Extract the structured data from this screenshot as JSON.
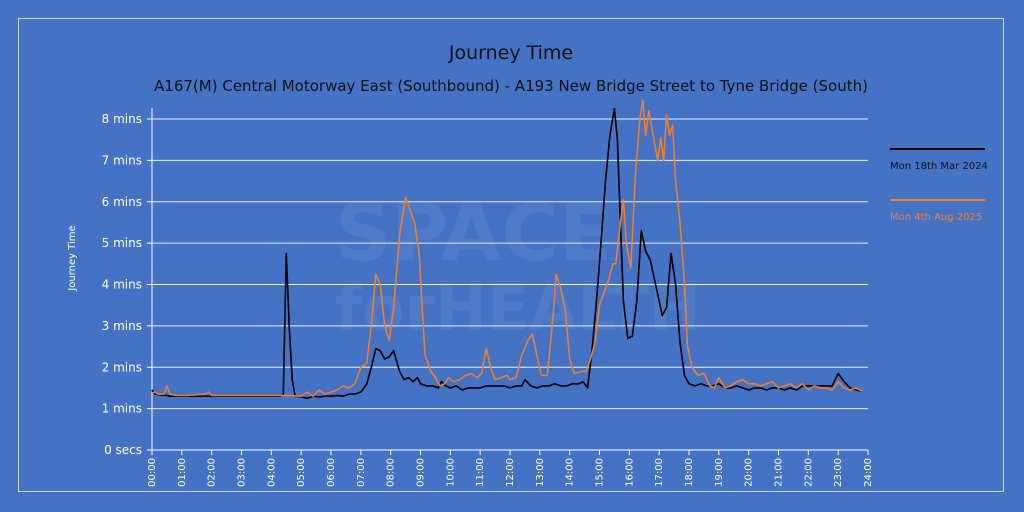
{
  "chart_data": {
    "type": "line",
    "title": "Journey Time",
    "subtitle": "A167(M) Central Motorway East (Southbound) - A193 New Bridge Street to Tyne Bridge (South)",
    "ylabel": "Journey Time",
    "xlabel": "",
    "ylim": [
      0,
      8.5
    ],
    "xlim": [
      0,
      24
    ],
    "grid": true,
    "legend_position": "right",
    "y_ticks": [
      {
        "value": 0,
        "label": "0 secs"
      },
      {
        "value": 1,
        "label": "1 mins"
      },
      {
        "value": 2,
        "label": "2 mins"
      },
      {
        "value": 3,
        "label": "3 mins"
      },
      {
        "value": 4,
        "label": "4 mins"
      },
      {
        "value": 5,
        "label": "5 mins"
      },
      {
        "value": 6,
        "label": "6 mins"
      },
      {
        "value": 7,
        "label": "7 mins"
      },
      {
        "value": 8,
        "label": "8 mins"
      }
    ],
    "x_ticks": [
      {
        "value": 0,
        "label": "00:00"
      },
      {
        "value": 1,
        "label": "01:00"
      },
      {
        "value": 2,
        "label": "02:00"
      },
      {
        "value": 3,
        "label": "03:00"
      },
      {
        "value": 4,
        "label": "04:00"
      },
      {
        "value": 5,
        "label": "05:00"
      },
      {
        "value": 6,
        "label": "06:00"
      },
      {
        "value": 7,
        "label": "07:00"
      },
      {
        "value": 8,
        "label": "08:00"
      },
      {
        "value": 9,
        "label": "09:00"
      },
      {
        "value": 10,
        "label": "10:00"
      },
      {
        "value": 11,
        "label": "11:00"
      },
      {
        "value": 12,
        "label": "12:00"
      },
      {
        "value": 13,
        "label": "13:00"
      },
      {
        "value": 14,
        "label": "14:00"
      },
      {
        "value": 15,
        "label": "15:00"
      },
      {
        "value": 16,
        "label": "16:00"
      },
      {
        "value": 17,
        "label": "17:00"
      },
      {
        "value": 18,
        "label": "18:00"
      },
      {
        "value": 19,
        "label": "19:00"
      },
      {
        "value": 20,
        "label": "20:00"
      },
      {
        "value": 21,
        "label": "21:00"
      },
      {
        "value": 22,
        "label": "22:00"
      },
      {
        "value": 23,
        "label": "23:00"
      },
      {
        "value": 24,
        "label": "24:00"
      }
    ],
    "series": [
      {
        "name": "Mon 18th Mar 2024",
        "color": "#000000",
        "points": [
          [
            0,
            1.45
          ],
          [
            0.1,
            1.35
          ],
          [
            0.3,
            1.33
          ],
          [
            0.5,
            1.32
          ],
          [
            0.6,
            1.3
          ],
          [
            0.8,
            1.3
          ],
          [
            1.5,
            1.3
          ],
          [
            2.5,
            1.3
          ],
          [
            3.5,
            1.3
          ],
          [
            4.3,
            1.3
          ],
          [
            4.4,
            1.35
          ],
          [
            4.5,
            4.75
          ],
          [
            4.6,
            3.0
          ],
          [
            4.7,
            1.7
          ],
          [
            4.8,
            1.3
          ],
          [
            5.0,
            1.28
          ],
          [
            5.2,
            1.25
          ],
          [
            5.4,
            1.3
          ],
          [
            5.6,
            1.28
          ],
          [
            5.8,
            1.3
          ],
          [
            6.0,
            1.3
          ],
          [
            6.2,
            1.32
          ],
          [
            6.4,
            1.3
          ],
          [
            6.6,
            1.35
          ],
          [
            6.8,
            1.35
          ],
          [
            7.0,
            1.4
          ],
          [
            7.2,
            1.6
          ],
          [
            7.35,
            2.0
          ],
          [
            7.5,
            2.45
          ],
          [
            7.65,
            2.4
          ],
          [
            7.8,
            2.2
          ],
          [
            7.95,
            2.25
          ],
          [
            8.1,
            2.4
          ],
          [
            8.3,
            1.9
          ],
          [
            8.45,
            1.7
          ],
          [
            8.6,
            1.75
          ],
          [
            8.75,
            1.65
          ],
          [
            8.9,
            1.75
          ],
          [
            9.0,
            1.6
          ],
          [
            9.2,
            1.55
          ],
          [
            9.4,
            1.55
          ],
          [
            9.6,
            1.5
          ],
          [
            9.7,
            1.65
          ],
          [
            9.85,
            1.55
          ],
          [
            10.0,
            1.5
          ],
          [
            10.2,
            1.55
          ],
          [
            10.4,
            1.45
          ],
          [
            10.6,
            1.5
          ],
          [
            10.8,
            1.5
          ],
          [
            11.0,
            1.5
          ],
          [
            11.2,
            1.55
          ],
          [
            11.4,
            1.55
          ],
          [
            11.6,
            1.55
          ],
          [
            11.8,
            1.55
          ],
          [
            12.0,
            1.5
          ],
          [
            12.2,
            1.55
          ],
          [
            12.4,
            1.55
          ],
          [
            12.5,
            1.7
          ],
          [
            12.7,
            1.55
          ],
          [
            12.9,
            1.5
          ],
          [
            13.1,
            1.55
          ],
          [
            13.3,
            1.55
          ],
          [
            13.5,
            1.6
          ],
          [
            13.7,
            1.55
          ],
          [
            13.9,
            1.55
          ],
          [
            14.1,
            1.6
          ],
          [
            14.3,
            1.6
          ],
          [
            14.45,
            1.65
          ],
          [
            14.6,
            1.5
          ],
          [
            14.75,
            2.4
          ],
          [
            14.9,
            3.6
          ],
          [
            15.05,
            5.0
          ],
          [
            15.2,
            6.5
          ],
          [
            15.35,
            7.6
          ],
          [
            15.5,
            8.25
          ],
          [
            15.6,
            7.5
          ],
          [
            15.7,
            5.5
          ],
          [
            15.8,
            3.6
          ],
          [
            15.95,
            2.7
          ],
          [
            16.1,
            2.75
          ],
          [
            16.25,
            3.6
          ],
          [
            16.4,
            5.3
          ],
          [
            16.55,
            4.8
          ],
          [
            16.7,
            4.6
          ],
          [
            16.85,
            4.1
          ],
          [
            17.0,
            3.6
          ],
          [
            17.1,
            3.25
          ],
          [
            17.25,
            3.45
          ],
          [
            17.4,
            4.75
          ],
          [
            17.55,
            4.0
          ],
          [
            17.7,
            2.6
          ],
          [
            17.85,
            1.8
          ],
          [
            18.0,
            1.6
          ],
          [
            18.2,
            1.55
          ],
          [
            18.4,
            1.6
          ],
          [
            18.6,
            1.55
          ],
          [
            18.8,
            1.55
          ],
          [
            19.0,
            1.6
          ],
          [
            19.2,
            1.5
          ],
          [
            19.4,
            1.5
          ],
          [
            19.6,
            1.55
          ],
          [
            19.8,
            1.5
          ],
          [
            20.0,
            1.45
          ],
          [
            20.2,
            1.5
          ],
          [
            20.4,
            1.5
          ],
          [
            20.6,
            1.45
          ],
          [
            20.8,
            1.5
          ],
          [
            21.0,
            1.5
          ],
          [
            21.2,
            1.45
          ],
          [
            21.4,
            1.5
          ],
          [
            21.6,
            1.45
          ],
          [
            21.8,
            1.55
          ],
          [
            22.0,
            1.55
          ],
          [
            22.2,
            1.55
          ],
          [
            22.4,
            1.55
          ],
          [
            22.6,
            1.55
          ],
          [
            22.8,
            1.55
          ],
          [
            23.0,
            1.85
          ],
          [
            23.2,
            1.65
          ],
          [
            23.4,
            1.5
          ],
          [
            23.6,
            1.45
          ],
          [
            23.8,
            1.42
          ]
        ]
      },
      {
        "name": "Mon 4th Aug 2025",
        "color": "#ed7d31",
        "points": [
          [
            0,
            1.38
          ],
          [
            0.1,
            1.4
          ],
          [
            0.2,
            1.35
          ],
          [
            0.4,
            1.35
          ],
          [
            0.5,
            1.55
          ],
          [
            0.6,
            1.35
          ],
          [
            0.8,
            1.32
          ],
          [
            1.2,
            1.32
          ],
          [
            1.8,
            1.35
          ],
          [
            1.9,
            1.4
          ],
          [
            2.0,
            1.32
          ],
          [
            2.5,
            1.32
          ],
          [
            3.5,
            1.32
          ],
          [
            4.4,
            1.32
          ],
          [
            4.6,
            1.32
          ],
          [
            5.0,
            1.3
          ],
          [
            5.2,
            1.4
          ],
          [
            5.4,
            1.3
          ],
          [
            5.6,
            1.45
          ],
          [
            5.8,
            1.35
          ],
          [
            6.0,
            1.4
          ],
          [
            6.2,
            1.45
          ],
          [
            6.4,
            1.55
          ],
          [
            6.6,
            1.5
          ],
          [
            6.8,
            1.6
          ],
          [
            7.0,
            2.0
          ],
          [
            7.2,
            2.1
          ],
          [
            7.35,
            3.0
          ],
          [
            7.5,
            4.25
          ],
          [
            7.65,
            4.0
          ],
          [
            7.8,
            3.0
          ],
          [
            7.95,
            2.65
          ],
          [
            8.1,
            3.4
          ],
          [
            8.3,
            5.2
          ],
          [
            8.5,
            6.1
          ],
          [
            8.65,
            5.8
          ],
          [
            8.8,
            5.5
          ],
          [
            8.95,
            4.8
          ],
          [
            9.05,
            3.5
          ],
          [
            9.15,
            2.3
          ],
          [
            9.35,
            1.9
          ],
          [
            9.5,
            1.75
          ],
          [
            9.65,
            1.55
          ],
          [
            9.8,
            1.6
          ],
          [
            9.95,
            1.75
          ],
          [
            10.1,
            1.65
          ],
          [
            10.3,
            1.7
          ],
          [
            10.5,
            1.8
          ],
          [
            10.7,
            1.85
          ],
          [
            10.9,
            1.75
          ],
          [
            11.05,
            1.85
          ],
          [
            11.2,
            2.45
          ],
          [
            11.35,
            2.0
          ],
          [
            11.5,
            1.7
          ],
          [
            11.7,
            1.75
          ],
          [
            11.9,
            1.8
          ],
          [
            12.0,
            1.7
          ],
          [
            12.2,
            1.75
          ],
          [
            12.4,
            2.3
          ],
          [
            12.6,
            2.65
          ],
          [
            12.75,
            2.8
          ],
          [
            12.9,
            2.3
          ],
          [
            13.05,
            1.8
          ],
          [
            13.25,
            1.8
          ],
          [
            13.45,
            3.3
          ],
          [
            13.55,
            4.25
          ],
          [
            13.7,
            3.9
          ],
          [
            13.85,
            3.4
          ],
          [
            14.0,
            2.2
          ],
          [
            14.15,
            1.85
          ],
          [
            14.4,
            1.9
          ],
          [
            14.55,
            1.9
          ],
          [
            14.7,
            2.2
          ],
          [
            14.85,
            2.6
          ],
          [
            15.0,
            3.5
          ],
          [
            15.15,
            3.8
          ],
          [
            15.3,
            4.1
          ],
          [
            15.45,
            4.5
          ],
          [
            15.55,
            4.5
          ],
          [
            15.7,
            5.5
          ],
          [
            15.8,
            6.05
          ],
          [
            15.9,
            5.0
          ],
          [
            16.05,
            4.4
          ],
          [
            16.2,
            6.6
          ],
          [
            16.35,
            8.0
          ],
          [
            16.45,
            8.45
          ],
          [
            16.55,
            7.6
          ],
          [
            16.65,
            8.2
          ],
          [
            16.75,
            7.8
          ],
          [
            16.85,
            7.4
          ],
          [
            16.95,
            7.0
          ],
          [
            17.05,
            7.55
          ],
          [
            17.15,
            7.0
          ],
          [
            17.25,
            8.1
          ],
          [
            17.35,
            7.6
          ],
          [
            17.45,
            7.85
          ],
          [
            17.55,
            6.5
          ],
          [
            17.7,
            5.5
          ],
          [
            17.85,
            4.0
          ],
          [
            17.95,
            2.5
          ],
          [
            18.1,
            2.0
          ],
          [
            18.3,
            1.8
          ],
          [
            18.5,
            1.85
          ],
          [
            18.7,
            1.55
          ],
          [
            18.85,
            1.5
          ],
          [
            19.0,
            1.75
          ],
          [
            19.2,
            1.5
          ],
          [
            19.4,
            1.55
          ],
          [
            19.6,
            1.65
          ],
          [
            19.8,
            1.7
          ],
          [
            20.0,
            1.6
          ],
          [
            20.2,
            1.6
          ],
          [
            20.4,
            1.55
          ],
          [
            20.6,
            1.6
          ],
          [
            20.8,
            1.65
          ],
          [
            21.0,
            1.5
          ],
          [
            21.2,
            1.55
          ],
          [
            21.4,
            1.6
          ],
          [
            21.6,
            1.5
          ],
          [
            21.8,
            1.6
          ],
          [
            22.0,
            1.45
          ],
          [
            22.2,
            1.55
          ],
          [
            22.4,
            1.5
          ],
          [
            22.6,
            1.5
          ],
          [
            22.8,
            1.45
          ],
          [
            23.0,
            1.65
          ],
          [
            23.2,
            1.5
          ],
          [
            23.4,
            1.45
          ],
          [
            23.6,
            1.5
          ],
          [
            23.8,
            1.42
          ]
        ]
      }
    ]
  }
}
